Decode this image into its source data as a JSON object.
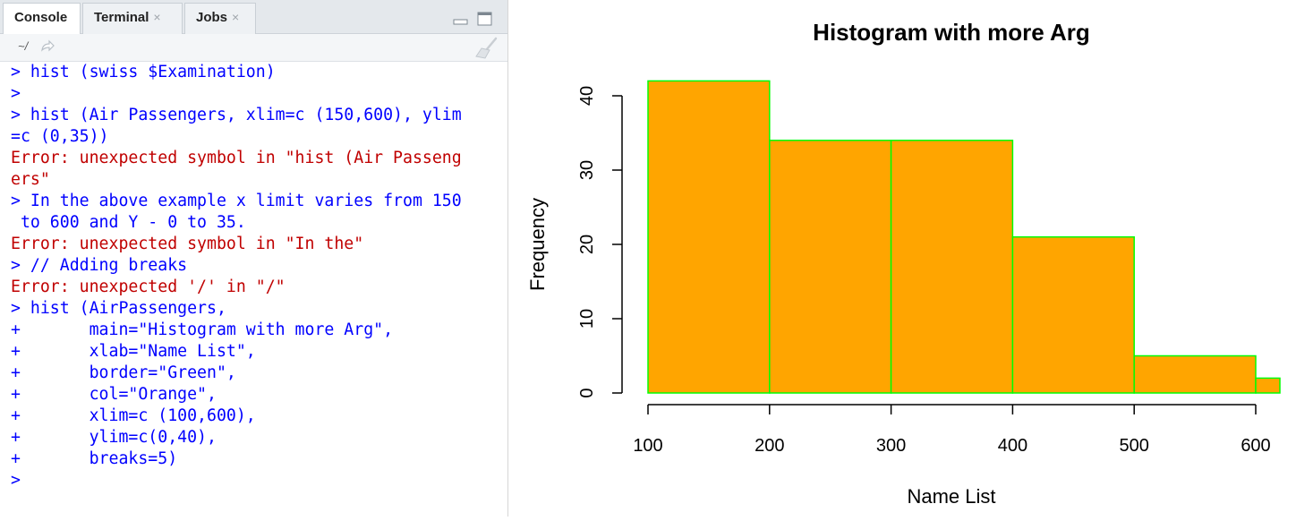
{
  "tabs": [
    {
      "label": "Console",
      "closable": false,
      "active": true
    },
    {
      "label": "Terminal",
      "closable": true,
      "active": false
    },
    {
      "label": "Jobs",
      "closable": true,
      "active": false
    }
  ],
  "toolbar": {
    "directory": "~/"
  },
  "console_lines": [
    {
      "text": "> hist (swiss $Examination)",
      "kind": "input"
    },
    {
      "text": ">",
      "kind": "input"
    },
    {
      "text": "> hist (Air Passengers, xlim=c (150,600), ylim",
      "kind": "input"
    },
    {
      "text": "=c (0,35))",
      "kind": "input"
    },
    {
      "text": "Error: unexpected symbol in \"hist (Air Passeng",
      "kind": "error"
    },
    {
      "text": "ers\"",
      "kind": "error"
    },
    {
      "text": "> In the above example x limit varies from 150",
      "kind": "input"
    },
    {
      "text": " to 600 and Y - 0 to 35.",
      "kind": "input"
    },
    {
      "text": "Error: unexpected symbol in \"In the\"",
      "kind": "error"
    },
    {
      "text": "> // Adding breaks",
      "kind": "input"
    },
    {
      "text": "Error: unexpected '/' in \"/\"",
      "kind": "error"
    },
    {
      "text": "> hist (AirPassengers,",
      "kind": "input"
    },
    {
      "text": "+       main=\"Histogram with more Arg\",",
      "kind": "input"
    },
    {
      "text": "+       xlab=\"Name List\",",
      "kind": "input"
    },
    {
      "text": "+       border=\"Green\",",
      "kind": "input"
    },
    {
      "text": "+       col=\"Orange\",",
      "kind": "input"
    },
    {
      "text": "+       xlim=c (100,600),",
      "kind": "input"
    },
    {
      "text": "+       ylim=c(0,40),",
      "kind": "input"
    },
    {
      "text": "+       breaks=5)",
      "kind": "input"
    },
    {
      "text": ">",
      "kind": "input"
    }
  ],
  "colors": {
    "input": "#0000ff",
    "error": "#c00000",
    "bar_fill": "#ffa500",
    "bar_border": "#00ff00"
  },
  "chart_data": {
    "type": "bar",
    "title": "Histogram with more Arg",
    "xlabel": "Name List",
    "ylabel": "Frequency",
    "xlim": [
      100,
      600
    ],
    "ylim": [
      0,
      40
    ],
    "bins": [
      {
        "start": 100,
        "end": 200,
        "count": 42
      },
      {
        "start": 200,
        "end": 300,
        "count": 34
      },
      {
        "start": 300,
        "end": 400,
        "count": 34
      },
      {
        "start": 400,
        "end": 500,
        "count": 21
      },
      {
        "start": 500,
        "end": 600,
        "count": 5
      },
      {
        "start": 600,
        "end": 700,
        "count": 2
      }
    ],
    "x_ticks": [
      "100",
      "200",
      "300",
      "400",
      "500",
      "600"
    ],
    "y_ticks": [
      "0",
      "10",
      "20",
      "30",
      "40"
    ],
    "fill_color": "Orange",
    "border_color": "Green"
  }
}
